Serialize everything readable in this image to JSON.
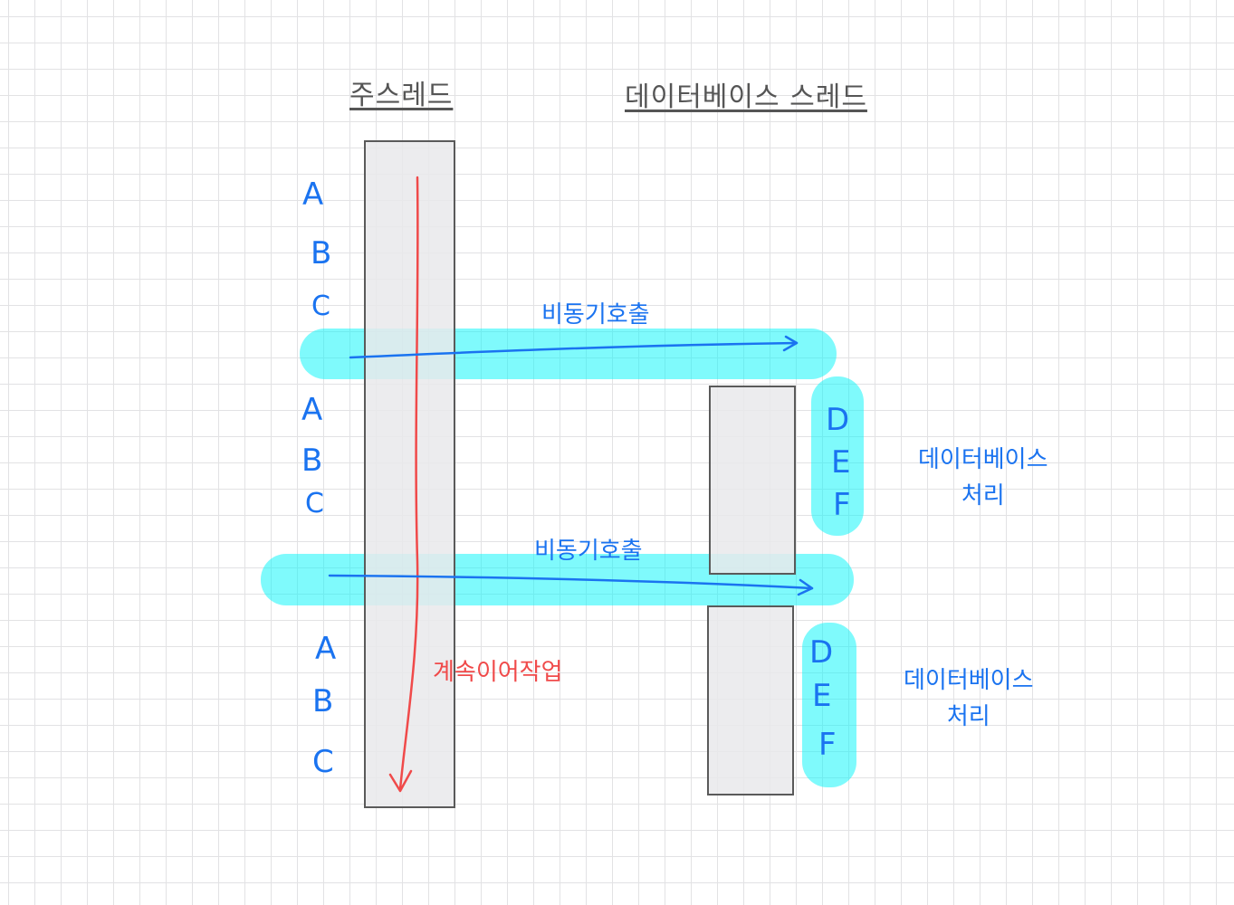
{
  "headers": {
    "main_thread": "주스레드",
    "db_thread": "데이터베이스 스레드"
  },
  "main_steps": [
    "A",
    "B",
    "C"
  ],
  "db_steps": [
    "D",
    "E",
    "F"
  ],
  "async_call_label": "비동기호출",
  "continue_label": "계속이어작업",
  "db_process_label": {
    "line1": "데이터베이스",
    "line2": "처리"
  },
  "colors": {
    "highlight": "#00f5fa",
    "ink_blue": "#1a73f0",
    "ink_red": "#f04a4a",
    "bar_fill": "#e9e9eb",
    "bar_border": "#5a5a5a",
    "header_ink": "#555555"
  }
}
